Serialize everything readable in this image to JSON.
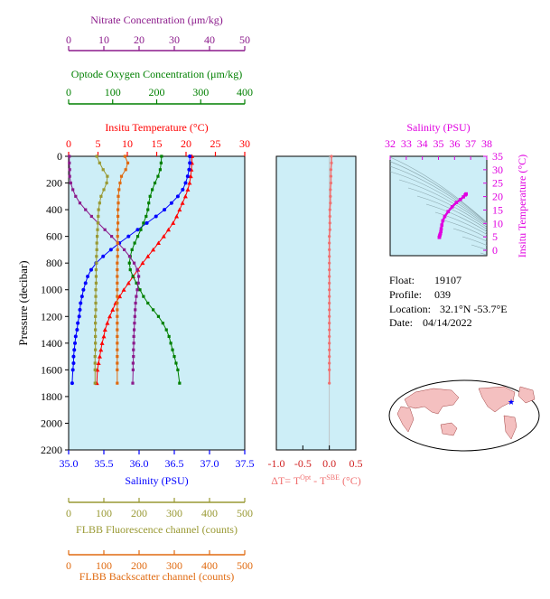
{
  "figure": {
    "float_label": "Float:",
    "float_value": "19107",
    "profile_label": "Profile:",
    "profile_value": "039",
    "location_label": "Location:",
    "location_value": "32.1°N  -53.7°E",
    "date_label": "Date:",
    "date_value": "04/14/2022"
  },
  "colors": {
    "temperature": "#ff0000",
    "salinity": "#0000ff",
    "oxygen": "#008000",
    "nitrate": "#8b1a8b",
    "fluorescence": "#999933",
    "backscatter": "#e06a10",
    "dt": "#f07070",
    "ts": "#e000e0",
    "panel_bg": "#cdeef7"
  },
  "chart_data": [
    {
      "type": "line",
      "panel": "profiles",
      "ylabel": "Pressure (decibar)",
      "ylim": [
        2200,
        0
      ],
      "yticks": [
        0,
        200,
        400,
        600,
        800,
        1000,
        1200,
        1400,
        1600,
        1800,
        2000,
        2200
      ],
      "grid": false,
      "axes": {
        "temperature": {
          "label": "Insitu Temperature (°C)",
          "range": [
            0,
            30
          ],
          "ticks": [
            0,
            5,
            10,
            15,
            20,
            25,
            30
          ]
        },
        "salinity": {
          "label": "Salinity (PSU)",
          "range": [
            35.0,
            37.5
          ],
          "ticks": [
            "35.0",
            "35.5",
            "36.0",
            "36.5",
            "37.0",
            "37.5"
          ]
        },
        "nitrate": {
          "label": "Nitrate Concentration (μm/kg)",
          "range": [
            0,
            50
          ],
          "ticks": [
            0,
            10,
            20,
            30,
            40,
            50
          ]
        },
        "oxygen": {
          "label": "Optode Oxygen Concentration (μm/kg)",
          "range": [
            0,
            400
          ],
          "ticks": [
            0,
            100,
            200,
            300,
            400
          ]
        },
        "fluorescence": {
          "label": "FLBB Fluorescence channel (counts)",
          "range": [
            0,
            500
          ],
          "ticks": [
            0,
            100,
            200,
            300,
            400,
            500
          ]
        },
        "backscatter": {
          "label": "FLBB Backscatter channel (counts)",
          "range": [
            0,
            500
          ],
          "ticks": [
            0,
            100,
            200,
            300,
            400,
            500
          ]
        }
      },
      "series": [
        {
          "name": "Insitu Temperature (°C)",
          "axis": "temperature",
          "x": [
            21.0,
            21.0,
            20.9,
            20.8,
            20.6,
            20.3,
            19.9,
            19.4,
            18.9,
            18.4,
            17.8,
            17.0,
            16.2,
            15.3,
            14.4,
            13.5,
            12.6,
            11.8,
            11.0,
            10.2,
            9.4,
            8.7,
            8.0,
            7.5,
            7.0,
            6.6,
            6.2,
            6.0,
            5.7,
            5.5,
            5.3,
            5.1,
            4.9,
            4.8
          ],
          "y": [
            0,
            50,
            100,
            150,
            200,
            250,
            300,
            350,
            400,
            450,
            500,
            550,
            600,
            650,
            700,
            750,
            800,
            850,
            900,
            950,
            1000,
            1050,
            1100,
            1150,
            1200,
            1250,
            1300,
            1350,
            1400,
            1450,
            1500,
            1550,
            1600,
            1700
          ]
        },
        {
          "name": "Salinity (PSU)",
          "axis": "salinity",
          "x": [
            36.72,
            36.72,
            36.71,
            36.69,
            36.66,
            36.62,
            36.55,
            36.46,
            36.36,
            36.24,
            36.11,
            35.98,
            35.85,
            35.72,
            35.6,
            35.49,
            35.39,
            35.32,
            35.27,
            35.24,
            35.21,
            35.19,
            35.17,
            35.16,
            35.15,
            35.13,
            35.12,
            35.1,
            35.09,
            35.08,
            35.07,
            35.07,
            35.06,
            35.05
          ],
          "y": [
            0,
            50,
            100,
            150,
            200,
            250,
            300,
            350,
            400,
            450,
            500,
            550,
            600,
            650,
            700,
            750,
            800,
            850,
            900,
            950,
            1000,
            1050,
            1100,
            1150,
            1200,
            1250,
            1300,
            1350,
            1400,
            1450,
            1500,
            1550,
            1600,
            1700
          ]
        },
        {
          "name": "Optode Oxygen Concentration (μm/kg)",
          "axis": "oxygen",
          "x": [
            211,
            210,
            208,
            203,
            196,
            190,
            185,
            182,
            180,
            176,
            170,
            164,
            157,
            150,
            144,
            140,
            138,
            140,
            146,
            154,
            162,
            170,
            180,
            192,
            204,
            214,
            222,
            228,
            232,
            236,
            240,
            244,
            248,
            252
          ],
          "y": [
            0,
            50,
            100,
            150,
            200,
            250,
            300,
            350,
            400,
            450,
            500,
            550,
            600,
            650,
            700,
            750,
            800,
            850,
            900,
            950,
            1000,
            1050,
            1100,
            1150,
            1200,
            1250,
            1300,
            1350,
            1400,
            1450,
            1500,
            1550,
            1600,
            1700
          ]
        },
        {
          "name": "Nitrate Concentration (μm/kg)",
          "axis": "nitrate",
          "x": [
            0.2,
            0.2,
            0.3,
            0.3,
            0.6,
            1.2,
            2.0,
            3.2,
            4.8,
            6.5,
            8.4,
            10.3,
            12.2,
            14.0,
            15.8,
            17.3,
            18.6,
            19.5,
            19.9,
            19.8,
            19.5,
            19.2,
            19.0,
            18.9,
            18.8,
            18.7,
            18.6,
            18.5,
            18.5,
            18.4,
            18.4,
            18.3,
            18.3,
            18.2
          ],
          "y": [
            0,
            50,
            100,
            150,
            200,
            250,
            300,
            350,
            400,
            450,
            500,
            550,
            600,
            650,
            700,
            750,
            800,
            850,
            900,
            950,
            1000,
            1050,
            1100,
            1150,
            1200,
            1250,
            1300,
            1350,
            1400,
            1450,
            1500,
            1550,
            1600,
            1700
          ]
        },
        {
          "name": "FLBB Fluorescence channel (counts)",
          "axis": "fluorescence",
          "x": [
            80,
            88,
            98,
            110,
            108,
            100,
            92,
            88,
            85,
            84,
            83,
            82,
            81,
            80,
            80,
            79,
            79,
            78,
            78,
            78,
            77,
            77,
            77,
            77,
            76,
            76,
            76,
            76,
            76,
            76,
            75,
            75,
            75,
            75
          ],
          "y": [
            0,
            50,
            100,
            150,
            200,
            250,
            300,
            350,
            400,
            450,
            500,
            550,
            600,
            650,
            700,
            750,
            800,
            850,
            900,
            950,
            1000,
            1050,
            1100,
            1150,
            1200,
            1250,
            1300,
            1350,
            1400,
            1450,
            1500,
            1550,
            1600,
            1700
          ]
        },
        {
          "name": "FLBB Backscatter channel (counts)",
          "axis": "backscatter",
          "x": [
            160,
            168,
            162,
            150,
            146,
            143,
            141,
            141,
            140,
            140,
            140,
            139,
            139,
            139,
            139,
            139,
            138,
            138,
            138,
            138,
            138,
            138,
            138,
            138,
            138,
            138,
            138,
            138,
            138,
            138,
            138,
            138,
            138,
            138
          ],
          "y": [
            0,
            50,
            100,
            150,
            200,
            250,
            300,
            350,
            400,
            450,
            500,
            550,
            600,
            650,
            700,
            750,
            800,
            850,
            900,
            950,
            1000,
            1050,
            1100,
            1150,
            1200,
            1250,
            1300,
            1350,
            1400,
            1450,
            1500,
            1550,
            1600,
            1700
          ]
        }
      ]
    },
    {
      "type": "scatter",
      "panel": "dt",
      "xlabel_prefix": "ΔT= T",
      "xlabel_sup1": "Opt",
      "xlabel_mid": " - T",
      "xlabel_sup2": "SBE",
      "xlabel_suffix": " (°C)",
      "xlim": [
        -1.0,
        0.5
      ],
      "xticks": [
        "-1.0",
        "-0.5",
        "0.0",
        "0.5"
      ],
      "ylim": [
        2200,
        0
      ],
      "series": [
        {
          "name": "",
          "x": [
            0.04,
            0.04,
            0.03,
            0.03,
            0.03,
            0.02,
            0.02,
            0.02,
            0.01,
            0.01,
            0.01,
            0.01,
            0.0,
            0.0,
            0.0,
            0.0,
            0.0,
            0.0,
            0.0,
            0.0,
            0.0,
            0.0,
            0.0,
            0.0,
            0.0,
            0.0,
            0.0,
            0.0,
            0.0,
            0.0,
            0.0,
            0.0,
            0.0,
            0.0
          ],
          "y": [
            0,
            50,
            100,
            150,
            200,
            250,
            300,
            350,
            400,
            450,
            500,
            550,
            600,
            650,
            700,
            750,
            800,
            850,
            900,
            950,
            1000,
            1050,
            1100,
            1150,
            1200,
            1250,
            1300,
            1350,
            1400,
            1450,
            1500,
            1550,
            1600,
            1700
          ]
        }
      ]
    },
    {
      "type": "scatter",
      "panel": "ts",
      "xlabel": "Salinity (PSU)",
      "ylabel": "Insitu Temperature (°C)",
      "xlim": [
        32,
        38
      ],
      "xticks": [
        32,
        33,
        34,
        35,
        36,
        37,
        38
      ],
      "ylim": [
        -2,
        35
      ],
      "yticks": [
        0,
        5,
        10,
        15,
        20,
        25,
        30,
        35
      ],
      "series": [
        {
          "name": "",
          "x": [
            36.72,
            36.71,
            36.66,
            36.55,
            36.36,
            36.11,
            35.85,
            35.6,
            35.39,
            35.27,
            35.21,
            35.17,
            35.15,
            35.12,
            35.09,
            35.07,
            35.06,
            35.05
          ],
          "y": [
            21.0,
            20.9,
            20.6,
            19.9,
            18.9,
            17.8,
            16.2,
            14.4,
            12.6,
            11.0,
            9.4,
            8.0,
            7.0,
            6.2,
            5.7,
            5.3,
            4.9,
            4.8
          ]
        }
      ]
    }
  ]
}
